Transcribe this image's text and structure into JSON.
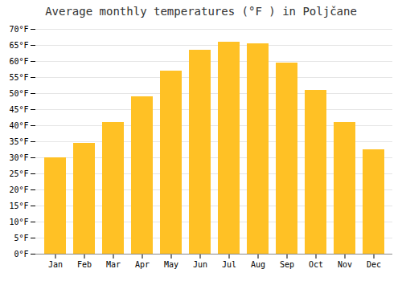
{
  "chart_data": {
    "type": "bar",
    "title": "Average monthly temperatures (°F ) in Poljčane",
    "categories": [
      "Jan",
      "Feb",
      "Mar",
      "Apr",
      "May",
      "Jun",
      "Jul",
      "Aug",
      "Sep",
      "Oct",
      "Nov",
      "Dec"
    ],
    "values": [
      30,
      34.5,
      41,
      49,
      57,
      63.5,
      66,
      65.5,
      59.5,
      51,
      41,
      32.5
    ],
    "color": "#FFC125",
    "ylim": [
      0,
      70
    ],
    "yticks": [
      {
        "value": 0,
        "label": "0°F"
      },
      {
        "value": 5,
        "label": "5°F"
      },
      {
        "value": 10,
        "label": "10°F"
      },
      {
        "value": 15,
        "label": "15°F"
      },
      {
        "value": 20,
        "label": "20°F"
      },
      {
        "value": 25,
        "label": "25°F"
      },
      {
        "value": 30,
        "label": "30°F"
      },
      {
        "value": 35,
        "label": "35°F"
      },
      {
        "value": 40,
        "label": "40°F"
      },
      {
        "value": 45,
        "label": "45°F"
      },
      {
        "value": 50,
        "label": "50°F"
      },
      {
        "value": 55,
        "label": "55°F"
      },
      {
        "value": 60,
        "label": "60°F"
      },
      {
        "value": 65,
        "label": "65°F"
      },
      {
        "value": 70,
        "label": "70°F"
      }
    ],
    "grid": true
  }
}
